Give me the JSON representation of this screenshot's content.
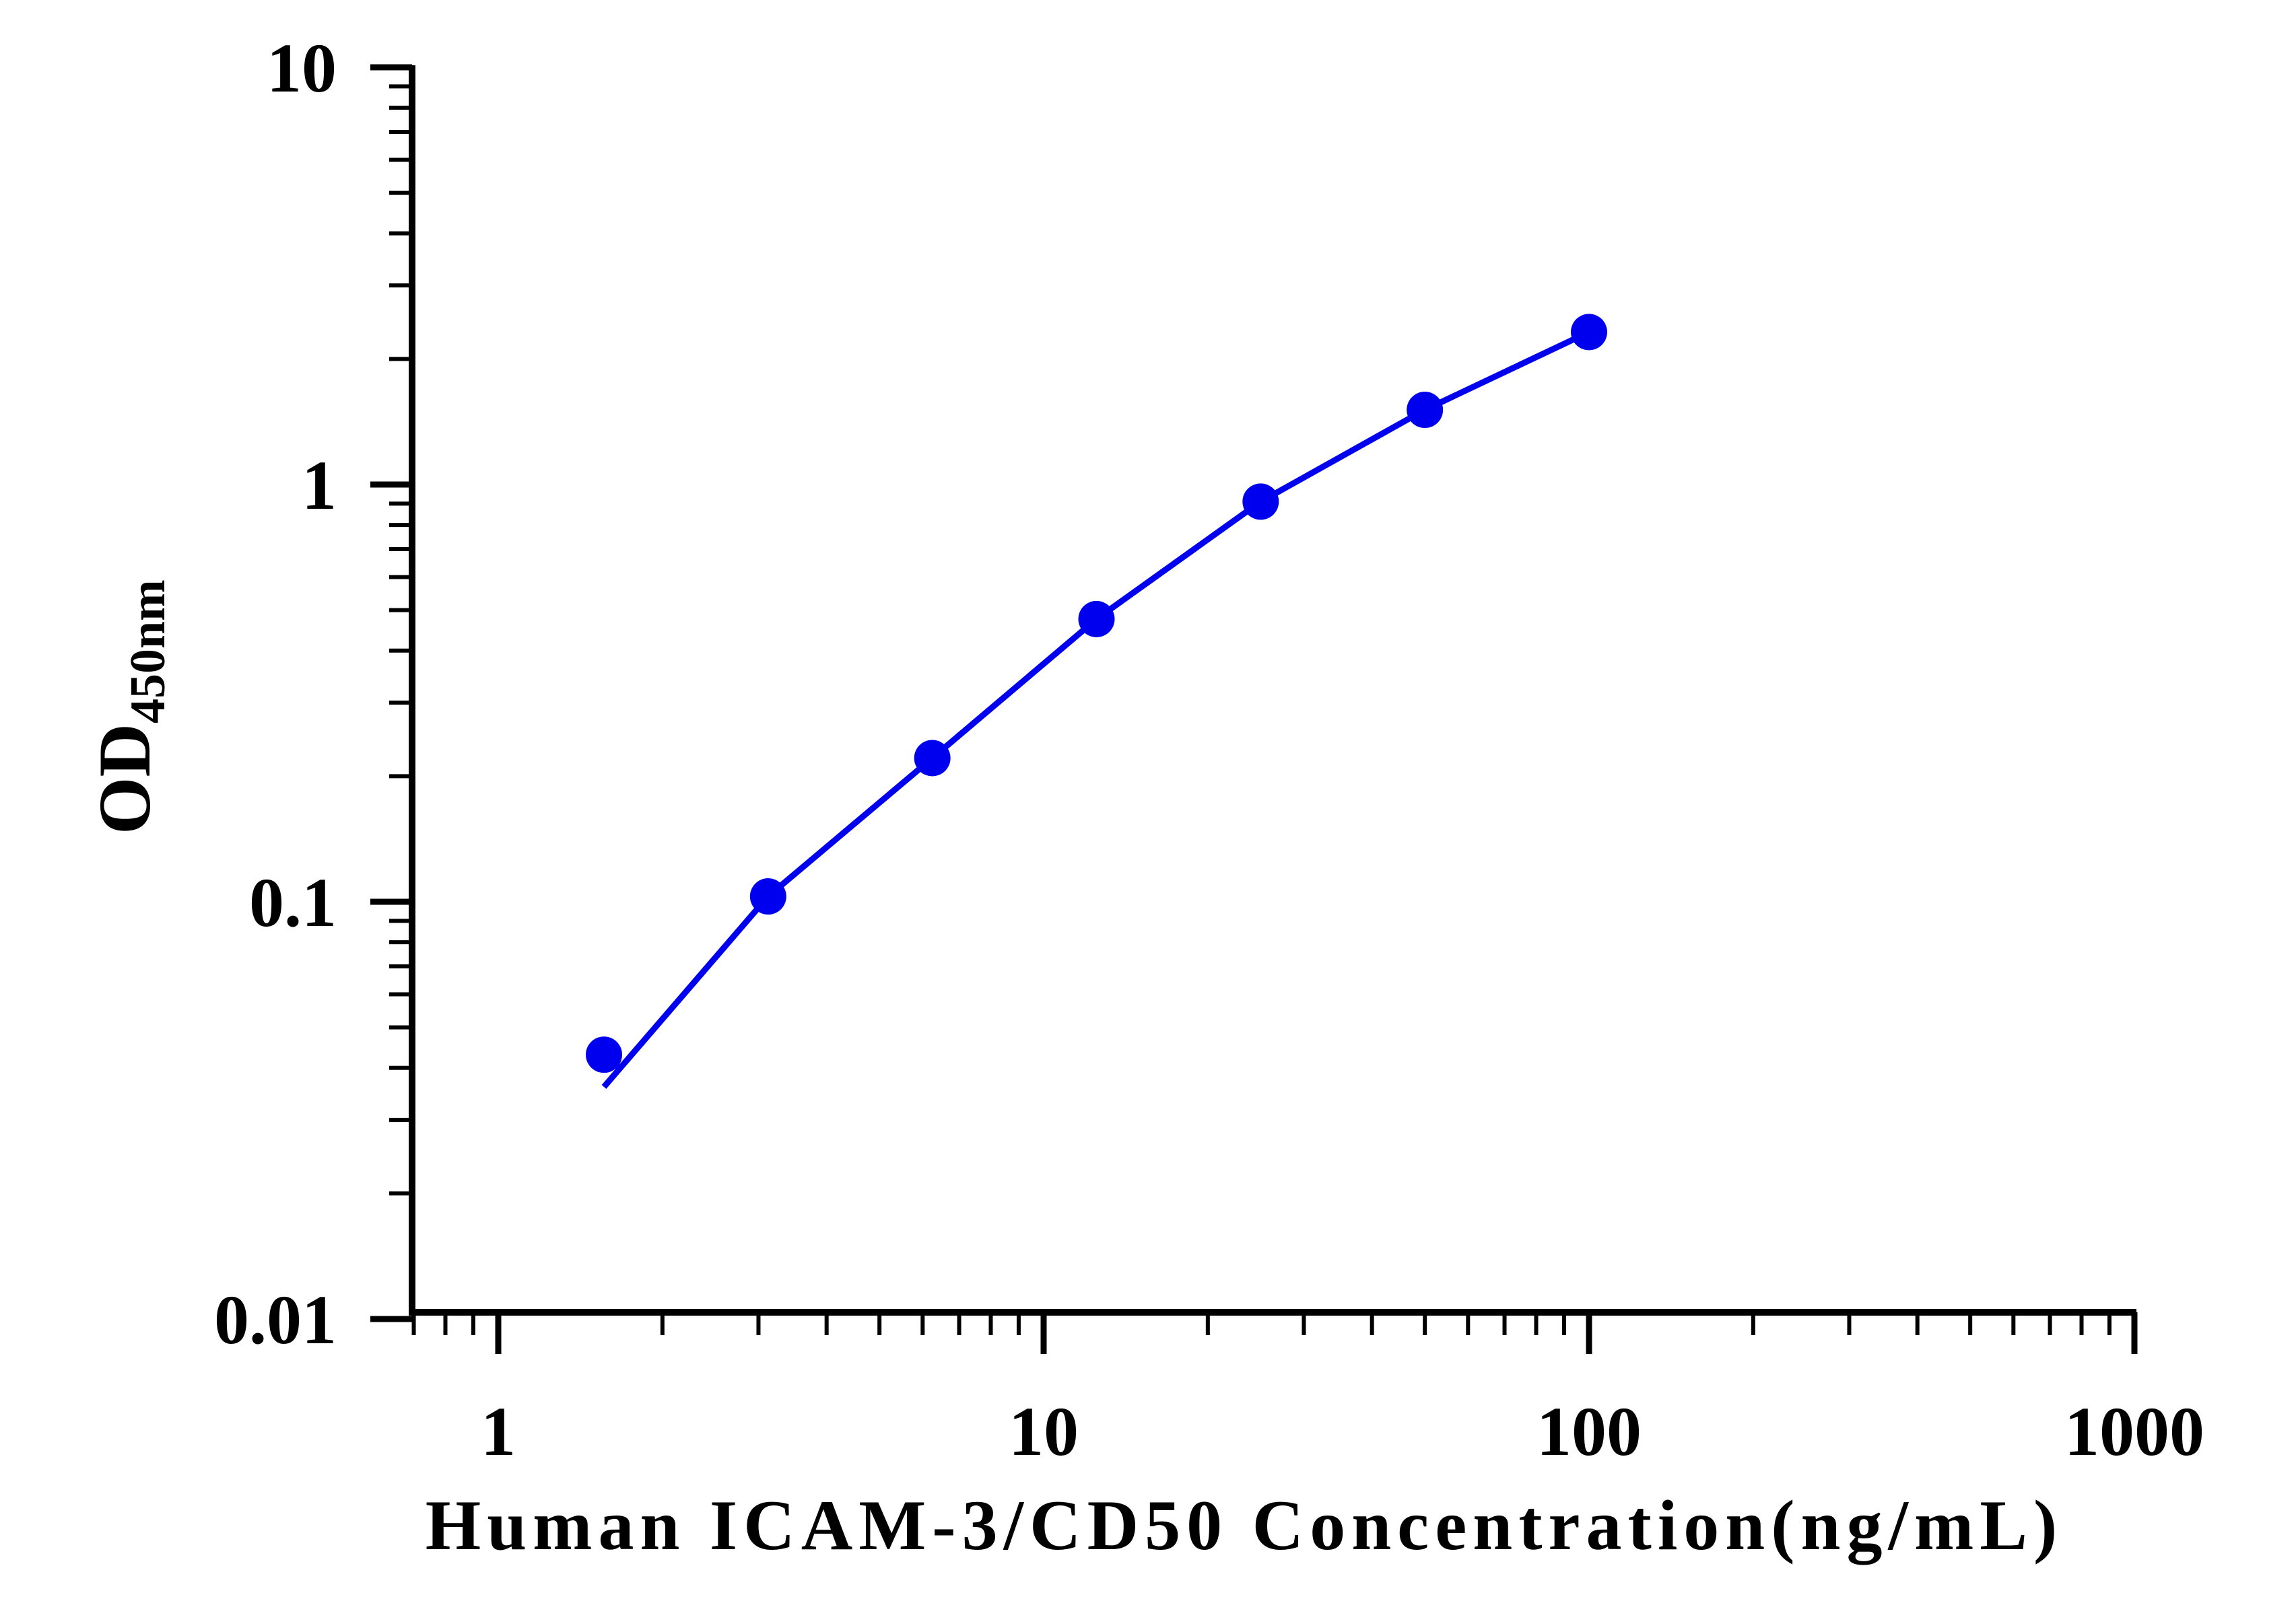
{
  "chart_data": {
    "type": "scatter",
    "title": "",
    "xlabel": "Human ICAM-3/CD50 Concentration(ng/mL)",
    "ylabel": "OD",
    "ylabel_subscript": "450nm",
    "x_scale": "log",
    "y_scale": "log",
    "xlim": [
      0.65,
      1000
    ],
    "ylim": [
      0.01,
      10
    ],
    "x_ticks": [
      1,
      10,
      100,
      1000
    ],
    "x_tick_labels": [
      "1",
      "10",
      "100",
      "1000"
    ],
    "y_ticks": [
      0.01,
      0.1,
      1,
      10
    ],
    "y_tick_labels": [
      "0.01",
      "0.1",
      "1",
      "10"
    ],
    "grid": false,
    "legend": "none",
    "series": [
      {
        "x": [
          1.5625,
          3.125,
          6.25,
          12.5,
          25,
          50,
          100
        ],
        "y": [
          0.043,
          0.103,
          0.221,
          0.476,
          0.91,
          1.51,
          2.32
        ],
        "color": "#0000EE",
        "marker": "circle",
        "fit_line": true
      }
    ],
    "fit_curve": {
      "x": [
        1.5625,
        3.125,
        6.25,
        12.5,
        25,
        50,
        100
      ],
      "y": [
        0.036,
        0.103,
        0.221,
        0.476,
        0.91,
        1.51,
        2.32
      ]
    }
  }
}
